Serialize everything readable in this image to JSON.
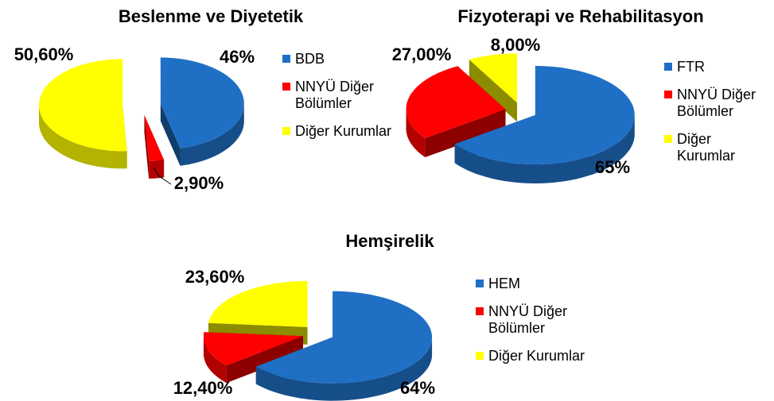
{
  "chart_data": [
    {
      "type": "pie",
      "title": "Beslenme ve Diyetetik",
      "categories": [
        "BDB",
        "NNYÜ Diğer Bölümler",
        "Diğer Kurumlar"
      ],
      "values": [
        46,
        2.9,
        50.6
      ],
      "value_labels": [
        "46%",
        "2,90%",
        "50,60%"
      ],
      "colors": [
        "#1f6fc5",
        "#ff0000",
        "#ffff00"
      ]
    },
    {
      "type": "pie",
      "title": "Fizyoterapi ve Rehabilitasyon",
      "categories": [
        "FTR",
        "NNYÜ Diğer Bölümler",
        "Diğer Kurumlar"
      ],
      "values": [
        65,
        27,
        8
      ],
      "value_labels": [
        "65%",
        "27,00%",
        "8,00%"
      ],
      "colors": [
        "#1f6fc5",
        "#ff0000",
        "#ffff00"
      ]
    },
    {
      "type": "pie",
      "title": "Hemşirelik",
      "categories": [
        "HEM",
        "NNYÜ Diğer Bölümler",
        "Diğer Kurumlar"
      ],
      "values": [
        64,
        12.4,
        23.6
      ],
      "value_labels": [
        "64%",
        "12,40%",
        "23,60%"
      ],
      "colors": [
        "#1f6fc5",
        "#ff0000",
        "#ffff00"
      ]
    }
  ]
}
